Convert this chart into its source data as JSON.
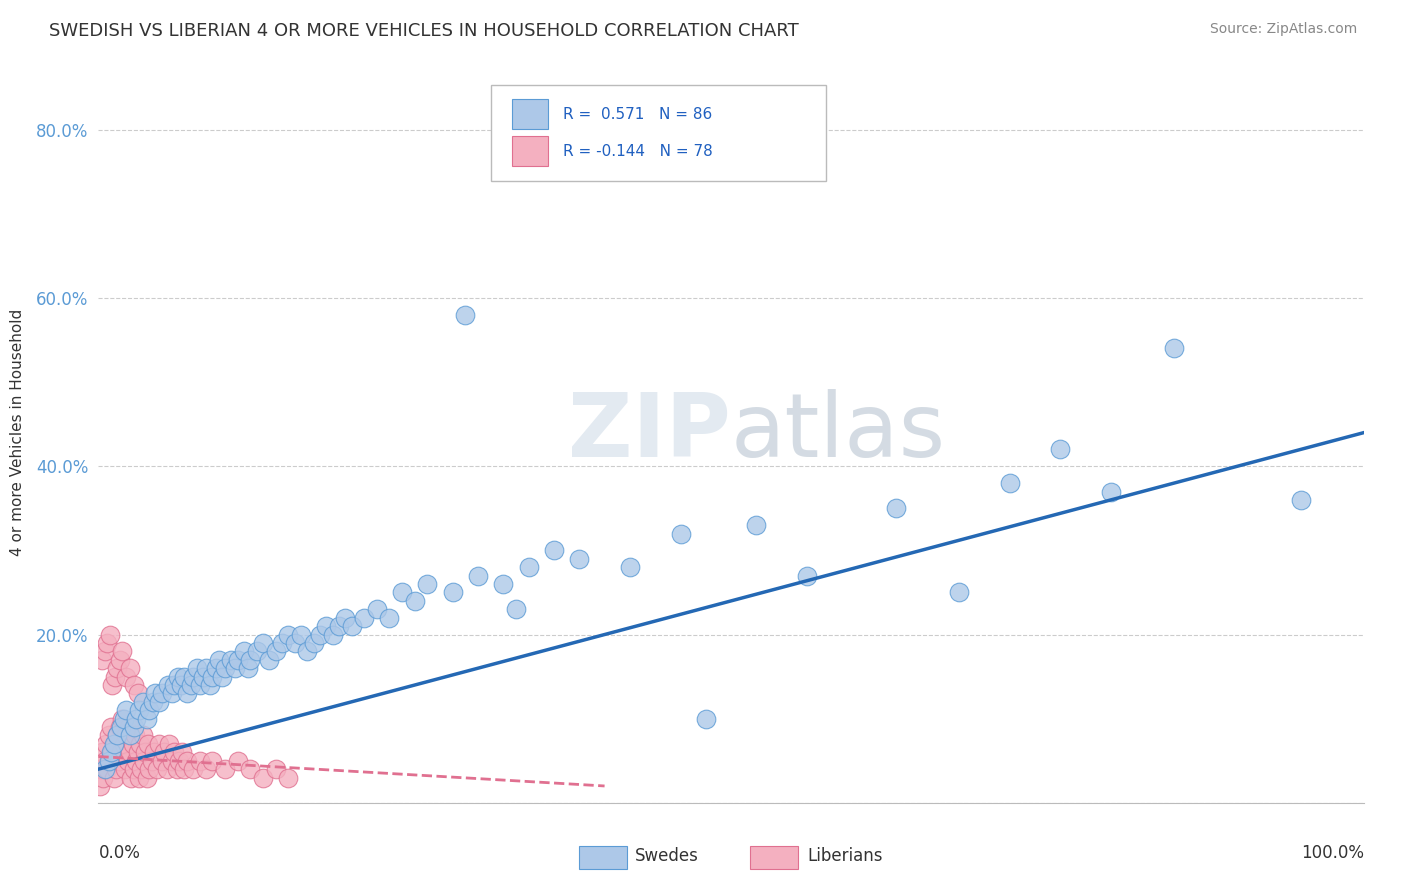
{
  "title": "SWEDISH VS LIBERIAN 4 OR MORE VEHICLES IN HOUSEHOLD CORRELATION CHART",
  "source": "Source: ZipAtlas.com",
  "ylabel": "4 or more Vehicles in Household",
  "swede_color": "#adc8e8",
  "swede_edge_color": "#5b9bd5",
  "liberian_color": "#f4b0c0",
  "liberian_edge_color": "#e07090",
  "trend_swede_color": "#2468b4",
  "trend_liberian_color": "#e07090",
  "background_color": "#ffffff",
  "grid_color": "#cccccc",
  "ytick_color": "#5b9bd5",
  "text_color": "#333333",
  "source_color": "#888888",
  "swede_trend_x": [
    0.0,
    1.0
  ],
  "swede_trend_y": [
    0.04,
    0.44
  ],
  "liberian_trend_x": [
    0.0,
    0.4
  ],
  "liberian_trend_y": [
    0.055,
    0.02
  ],
  "xlim": [
    0.0,
    1.0
  ],
  "ylim": [
    0.0,
    0.88
  ],
  "yticks": [
    0.0,
    0.2,
    0.4,
    0.6,
    0.8
  ],
  "ytick_labels": [
    "",
    "20.0%",
    "40.0%",
    "60.0%",
    "80.0%"
  ],
  "watermark": "ZIPatlas",
  "legend_r1": "R =  0.571",
  "legend_n1": "N = 86",
  "legend_r2": "R = -0.144",
  "legend_n2": "N = 78",
  "bottom_legend": [
    "Swedes",
    "Liberians"
  ],
  "swedes_x": [
    0.005,
    0.008,
    0.01,
    0.012,
    0.015,
    0.018,
    0.02,
    0.022,
    0.025,
    0.028,
    0.03,
    0.032,
    0.035,
    0.038,
    0.04,
    0.043,
    0.045,
    0.048,
    0.05,
    0.055,
    0.058,
    0.06,
    0.063,
    0.065,
    0.068,
    0.07,
    0.073,
    0.075,
    0.078,
    0.08,
    0.083,
    0.085,
    0.088,
    0.09,
    0.093,
    0.095,
    0.098,
    0.1,
    0.105,
    0.108,
    0.11,
    0.115,
    0.118,
    0.12,
    0.125,
    0.13,
    0.135,
    0.14,
    0.145,
    0.15,
    0.155,
    0.16,
    0.165,
    0.17,
    0.175,
    0.18,
    0.185,
    0.19,
    0.195,
    0.2,
    0.21,
    0.22,
    0.23,
    0.24,
    0.25,
    0.26,
    0.28,
    0.3,
    0.32,
    0.34,
    0.36,
    0.38,
    0.42,
    0.46,
    0.48,
    0.52,
    0.56,
    0.63,
    0.68,
    0.72,
    0.76,
    0.8,
    0.85,
    0.95,
    0.33,
    0.29
  ],
  "swedes_y": [
    0.04,
    0.05,
    0.06,
    0.07,
    0.08,
    0.09,
    0.1,
    0.11,
    0.08,
    0.09,
    0.1,
    0.11,
    0.12,
    0.1,
    0.11,
    0.12,
    0.13,
    0.12,
    0.13,
    0.14,
    0.13,
    0.14,
    0.15,
    0.14,
    0.15,
    0.13,
    0.14,
    0.15,
    0.16,
    0.14,
    0.15,
    0.16,
    0.14,
    0.15,
    0.16,
    0.17,
    0.15,
    0.16,
    0.17,
    0.16,
    0.17,
    0.18,
    0.16,
    0.17,
    0.18,
    0.19,
    0.17,
    0.18,
    0.19,
    0.2,
    0.19,
    0.2,
    0.18,
    0.19,
    0.2,
    0.21,
    0.2,
    0.21,
    0.22,
    0.21,
    0.22,
    0.23,
    0.22,
    0.25,
    0.24,
    0.26,
    0.25,
    0.27,
    0.26,
    0.28,
    0.3,
    0.29,
    0.28,
    0.32,
    0.1,
    0.33,
    0.27,
    0.35,
    0.25,
    0.38,
    0.42,
    0.37,
    0.54,
    0.36,
    0.23,
    0.58
  ],
  "liberians_x": [
    0.001,
    0.002,
    0.003,
    0.004,
    0.005,
    0.006,
    0.007,
    0.008,
    0.009,
    0.01,
    0.011,
    0.012,
    0.013,
    0.014,
    0.015,
    0.016,
    0.017,
    0.018,
    0.019,
    0.02,
    0.021,
    0.022,
    0.023,
    0.024,
    0.025,
    0.026,
    0.027,
    0.028,
    0.029,
    0.03,
    0.031,
    0.032,
    0.033,
    0.034,
    0.035,
    0.036,
    0.037,
    0.038,
    0.039,
    0.04,
    0.042,
    0.044,
    0.046,
    0.048,
    0.05,
    0.052,
    0.054,
    0.056,
    0.058,
    0.06,
    0.062,
    0.064,
    0.066,
    0.068,
    0.07,
    0.075,
    0.08,
    0.085,
    0.09,
    0.1,
    0.11,
    0.12,
    0.13,
    0.14,
    0.15,
    0.003,
    0.005,
    0.007,
    0.009,
    0.011,
    0.013,
    0.015,
    0.017,
    0.019,
    0.022,
    0.025,
    0.028,
    0.031
  ],
  "liberians_y": [
    0.02,
    0.04,
    0.06,
    0.03,
    0.05,
    0.07,
    0.04,
    0.08,
    0.05,
    0.09,
    0.06,
    0.03,
    0.07,
    0.04,
    0.08,
    0.05,
    0.09,
    0.06,
    0.1,
    0.07,
    0.04,
    0.08,
    0.05,
    0.09,
    0.06,
    0.03,
    0.07,
    0.04,
    0.08,
    0.05,
    0.06,
    0.03,
    0.07,
    0.04,
    0.08,
    0.05,
    0.06,
    0.03,
    0.07,
    0.04,
    0.05,
    0.06,
    0.04,
    0.07,
    0.05,
    0.06,
    0.04,
    0.07,
    0.05,
    0.06,
    0.04,
    0.05,
    0.06,
    0.04,
    0.05,
    0.04,
    0.05,
    0.04,
    0.05,
    0.04,
    0.05,
    0.04,
    0.03,
    0.04,
    0.03,
    0.17,
    0.18,
    0.19,
    0.2,
    0.14,
    0.15,
    0.16,
    0.17,
    0.18,
    0.15,
    0.16,
    0.14,
    0.13
  ]
}
